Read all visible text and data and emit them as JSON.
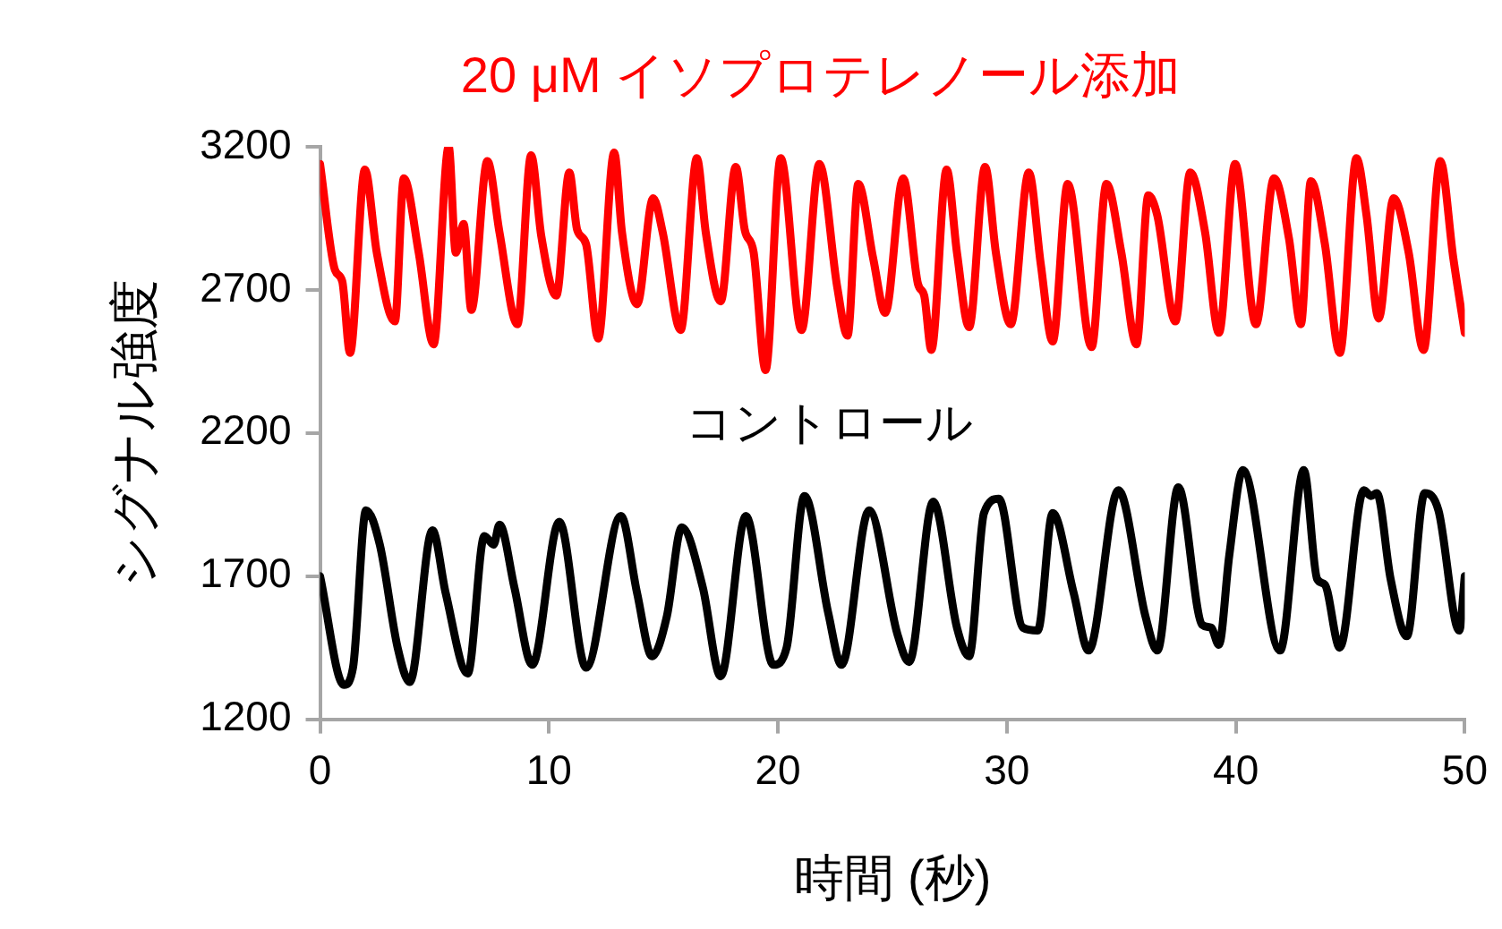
{
  "chart_data": {
    "type": "line",
    "xlabel": "時間 (秒)",
    "ylabel": "シグナル強度",
    "xlim": [
      0,
      50
    ],
    "xticks": [
      0,
      10,
      20,
      30,
      40,
      50
    ],
    "ylim": [
      1200,
      3200
    ],
    "yticks": [
      1200,
      1700,
      2200,
      2700,
      3200
    ],
    "grid": false,
    "legend": false,
    "marker": "none",
    "line_style": "solid",
    "series": [
      {
        "name": "20 μM イソプロテレノール添加",
        "color": "#ff0000",
        "x": [
          0,
          0.65,
          0.97,
          1.31,
          1.96,
          2.48,
          3.27,
          3.66,
          4.31,
          4.96,
          5.62,
          5.93,
          6.27,
          6.61,
          7.31,
          7.84,
          8.62,
          9.22,
          9.66,
          10.32,
          10.89,
          11.23,
          11.62,
          12.15,
          12.85,
          13.19,
          13.85,
          14.55,
          14.97,
          15.75,
          16.46,
          16.85,
          17.5,
          18.16,
          18.55,
          18.94,
          19.46,
          20.12,
          21.03,
          21.81,
          22.59,
          23.04,
          23.51,
          24.16,
          24.69,
          25.47,
          26.12,
          26.39,
          26.7,
          27.37,
          27.82,
          28.35,
          29.05,
          29.52,
          30.17,
          30.96,
          31.48,
          32,
          32.66,
          33.7,
          34.35,
          35,
          35.66,
          36.18,
          36.57,
          37.36,
          38.01,
          38.66,
          39.26,
          39.97,
          40.88,
          41.67,
          42.32,
          42.84,
          43.28,
          43.89,
          44.54,
          45.27,
          45.71,
          46.24,
          46.89,
          47.55,
          48.2,
          48.93,
          49.5,
          50
        ],
        "values": [
          3140,
          2770,
          2730,
          2480,
          3120,
          2830,
          2590,
          3090,
          2830,
          2510,
          3200,
          2830,
          2930,
          2630,
          3150,
          2900,
          2580,
          3170,
          2890,
          2680,
          3110,
          2910,
          2860,
          2530,
          3180,
          2900,
          2650,
          3020,
          2900,
          2560,
          3160,
          2900,
          2660,
          3130,
          2910,
          2830,
          2420,
          3160,
          2560,
          3140,
          2710,
          2540,
          3070,
          2810,
          2620,
          3090,
          2720,
          2680,
          2490,
          3120,
          2830,
          2570,
          3130,
          2830,
          2580,
          3110,
          2790,
          2520,
          3070,
          2500,
          3070,
          2830,
          2510,
          3030,
          2960,
          2590,
          3110,
          2900,
          2550,
          3140,
          2580,
          3090,
          2880,
          2580,
          3080,
          2860,
          2480,
          3160,
          2960,
          2600,
          3020,
          2830,
          2490,
          3150,
          2810,
          2550
        ]
      },
      {
        "name": "コントロール",
        "color": "#000000",
        "x": [
          0,
          1.04,
          1.44,
          2.01,
          2.61,
          3.39,
          3.92,
          4.91,
          5.49,
          6.45,
          7.18,
          7.58,
          7.84,
          8.49,
          9.27,
          10.45,
          11.62,
          13.14,
          13.85,
          14.5,
          15.15,
          15.8,
          16.72,
          17.5,
          18.6,
          19.8,
          20.38,
          21.16,
          22.2,
          22.78,
          23.98,
          25.21,
          25.73,
          26.78,
          27.82,
          28.35,
          29,
          29.65,
          30.7,
          31.35,
          32,
          32.92,
          33.57,
          34.87,
          36.05,
          36.57,
          37.49,
          38.53,
          38.92,
          39.26,
          39.71,
          40.31,
          41.93,
          42.97,
          43.55,
          43.89,
          44.54,
          45.59,
          45.9,
          46.16,
          46.76,
          47.47,
          48.25,
          48.85,
          49.76,
          50
        ],
        "values": [
          1700,
          1320,
          1380,
          1930,
          1810,
          1450,
          1330,
          1860,
          1640,
          1360,
          1840,
          1810,
          1880,
          1660,
          1390,
          1890,
          1380,
          1910,
          1640,
          1420,
          1560,
          1870,
          1660,
          1350,
          1910,
          1390,
          1450,
          1980,
          1570,
          1390,
          1930,
          1500,
          1400,
          1960,
          1520,
          1420,
          1920,
          1970,
          1520,
          1510,
          1920,
          1640,
          1440,
          2000,
          1560,
          1440,
          2010,
          1530,
          1520,
          1460,
          1770,
          2070,
          1440,
          2070,
          1690,
          1670,
          1450,
          2000,
          1980,
          1990,
          1690,
          1490,
          1990,
          1930,
          1510,
          1700
        ]
      }
    ]
  }
}
